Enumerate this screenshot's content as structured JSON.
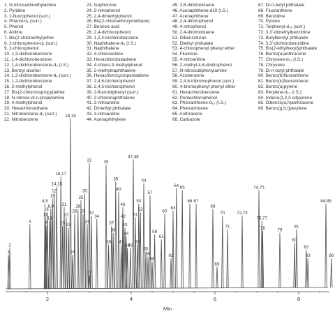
{
  "chart_data": {
    "type": "line",
    "xlabel": "Min",
    "ylabel": "",
    "xlim": [
      1.0,
      8.7
    ],
    "ylim": [
      0,
      100
    ],
    "x_ticks": [
      "2",
      "4",
      "6",
      "8"
    ],
    "grid": false,
    "legend_position": "top",
    "compounds": [
      "1. N-nitrosodimethylamine",
      "2. Pyridine",
      "3. 2-fluorophenol (surr.)",
      "4. Phenol-d₆ (surr.)",
      "5. Phenol",
      "6. Aniline",
      "7. Bis(2-chloroethyl)ether",
      "8. 2-chlorophenol-d₄ (surr.)",
      "9. 2-chlorophenol",
      "10. 1,3-dichlorobenzene",
      "11. 1,4-dichlorobenzene",
      "12. 1,4-dichlorobenzene-d₄ (I.S.)",
      "13. Benzyl alcohol",
      "14. 1,2-dichlorobenzene-d₄ (surr.)",
      "15. 1,2-dichlorobenzene",
      "16. 2-methylphenol",
      "17. Bis(2-chloroisopropyl)ether",
      "18. N-nitroso-di-n-propylamine",
      "19. 4-methylphenol",
      "20. Hexachloroethane",
      "21. Nitrobenzene-d₅ (surr.)",
      "22. Nitrobenzene",
      "23. Isophorone",
      "24. 2-nitrophenol",
      "25. 2,4-dimethylphenol",
      "26. Bis(2-chloroethoxymethane)",
      "27. Benzoic acid",
      "28. 2,4-dichlorophenol",
      "29. 1,2,4-trichlorobenzene",
      "30. Naphthalene-d₈ (I.S.)",
      "31. Naphthalene",
      "32. 4-chloroaniline",
      "33. Hexachlorobutadiene",
      "34. 4-chloro-3-methylphenol",
      "35. 2-methylnaphthalene",
      "36. Hexachlorocyclopentadiene",
      "37. 2,4,6-trichlorophenol",
      "38. 2,4,5-trichlorophenol",
      "39. 2-fluorobiphenyl (surr.)",
      "40. 2-chloronaphthalene",
      "41. 2-nitroaniline",
      "42. Dimethyl phthalate",
      "43. 3-nitroaniline",
      "44. Acenaphthylene",
      "45. 2,6-dinitrotoluene",
      "46. Acenaphthene-d10 (I.S.)",
      "47. Acenaphthene",
      "48. 2,4-dinitrophenol",
      "49. 4-nitrophenol",
      "50. 2,4-dinitrotoluene",
      "51. Dibenzofuran",
      "52. Diethyl phthalate",
      "53. 4-chlorophenyl phenyl ether",
      "54. Fluorene",
      "55. 4-nitroaniline",
      "56. 2-methyl-4,6-dinitrophenol",
      "57. N-nitrosodiphenylamine",
      "58. Azobenzene",
      "59. 2,4,6-tribromophenol (surr.)",
      "60. 4-bromophenyl phenyl ether",
      "61. Hexachlorobenzene",
      "62. Pentachlorophenol",
      "63. Phenanthrene-d₁₀ (I.S.)",
      "64. Phenanthrene",
      "65. Anthracene",
      "66. Carbazole",
      "67. Di-n-butyl phthalate",
      "68. Fluoranthene",
      "69. Benzidine",
      "70. Pyrene",
      "71. Terphenyl-d₁₄ (surr.)",
      "72. 3,3’-dimethylbenzidine",
      "73. Butylbenzyl phthalate",
      "74. 3,3’-dichlorobenzidine",
      "75. Bis(2-ethylhexyl)phthalate",
      "76. Benzo(a)anthracene",
      "77. Chrysene-d₁₂ (I.S.)",
      "78. Chrysene",
      "79. Di-n-octyl phthalate",
      "80. Benzo(b)fluoranthene",
      "81. Benzo(k)fluoranthene",
      "82. Benzo(a)pyrene",
      "83. Perylene-d₁₂ (I.S.)",
      "84. Indeno(1,2,3-cd)pyrene",
      "85. Dibenzo(a,h)anthracene",
      "86. Benzo(g,h,i)perylene"
    ],
    "peaks": [
      {
        "x": 1.07,
        "h": 20,
        "label": "1"
      },
      {
        "x": 1.1,
        "h": 24,
        "label": "2"
      },
      {
        "x": 1.58,
        "h": 38,
        "label": "3"
      },
      {
        "x": 1.94,
        "h": 50,
        "label": "4,5"
      },
      {
        "x": 2.0,
        "h": 45,
        "label": "6"
      },
      {
        "x": 1.97,
        "h": 37,
        "label": "7"
      },
      {
        "x": 2.08,
        "h": 47,
        "label": "8,9"
      },
      {
        "x": 1.95,
        "h": 42,
        "label": "11"
      },
      {
        "x": 2.12,
        "h": 53,
        "label": "10"
      },
      {
        "x": 2.16,
        "h": 56,
        "label": "12"
      },
      {
        "x": 2.05,
        "h": 40,
        "label": "13"
      },
      {
        "x": 2.22,
        "h": 60,
        "label": "14,15"
      },
      {
        "x": 2.32,
        "h": 66,
        "label": "16,17"
      },
      {
        "x": 2.55,
        "h": 100,
        "label": "18,19"
      },
      {
        "x": 2.36,
        "h": 37,
        "label": "20"
      },
      {
        "x": 2.4,
        "h": 48,
        "label": "21"
      },
      {
        "x": 2.45,
        "h": 42,
        "label": "22"
      },
      {
        "x": 2.5,
        "h": 36,
        "label": "23"
      },
      {
        "x": 2.6,
        "h": 20,
        "label": "24"
      },
      {
        "x": 2.8,
        "h": 52,
        "label": "25"
      },
      {
        "x": 2.65,
        "h": 44,
        "label": "26"
      },
      {
        "x": 3.0,
        "h": 8,
        "label": "27"
      },
      {
        "x": 2.73,
        "h": 47,
        "label": "28"
      },
      {
        "x": 2.85,
        "h": 44,
        "label": "29"
      },
      {
        "x": 2.89,
        "h": 56,
        "label": "30"
      },
      {
        "x": 3.0,
        "h": 74,
        "label": "31"
      },
      {
        "x": 3.05,
        "h": 43,
        "label": "32"
      },
      {
        "x": 2.95,
        "h": 38,
        "label": "33"
      },
      {
        "x": 3.18,
        "h": 41,
        "label": "34"
      },
      {
        "x": 3.4,
        "h": 73,
        "label": "35"
      },
      {
        "x": 3.46,
        "h": 26,
        "label": "36"
      },
      {
        "x": 3.53,
        "h": 37,
        "label": "37"
      },
      {
        "x": 3.57,
        "h": 33,
        "label": "38"
      },
      {
        "x": 3.63,
        "h": 63,
        "label": "39"
      },
      {
        "x": 3.7,
        "h": 57,
        "label": "40"
      },
      {
        "x": 3.76,
        "h": 26,
        "label": "41"
      },
      {
        "x": 3.81,
        "h": 41,
        "label": "42"
      },
      {
        "x": 3.85,
        "h": 36,
        "label": "43"
      },
      {
        "x": 3.88,
        "h": 31,
        "label": "44"
      },
      {
        "x": 3.91,
        "h": 24,
        "label": "45"
      },
      {
        "x": 3.8,
        "h": 48,
        "label": "46"
      },
      {
        "x": 4.05,
        "h": 76,
        "label": "47,48"
      },
      {
        "x": 3.98,
        "h": 24,
        "label": "49"
      },
      {
        "x": 4.15,
        "h": 26,
        "label": "50"
      },
      {
        "x": 4.1,
        "h": 42,
        "label": "51"
      },
      {
        "x": 4.22,
        "h": 45,
        "label": "52"
      },
      {
        "x": 4.18,
        "h": 50,
        "label": "53"
      },
      {
        "x": 4.3,
        "h": 62,
        "label": "54"
      },
      {
        "x": 4.35,
        "h": 22,
        "label": "55"
      },
      {
        "x": 4.4,
        "h": 19,
        "label": "56"
      },
      {
        "x": 4.45,
        "h": 55,
        "label": "57"
      },
      {
        "x": 4.5,
        "h": 16,
        "label": "58"
      },
      {
        "x": 4.56,
        "h": 32,
        "label": "59"
      },
      {
        "x": 4.8,
        "h": 44,
        "label": "60"
      },
      {
        "x": 4.72,
        "h": 29,
        "label": "61"
      },
      {
        "x": 4.95,
        "h": 18,
        "label": "62"
      },
      {
        "x": 5.0,
        "h": 46,
        "label": "63"
      },
      {
        "x": 5.08,
        "h": 59,
        "label": "64"
      },
      {
        "x": 5.22,
        "h": 58,
        "label": "65"
      },
      {
        "x": 5.4,
        "h": 50,
        "label": "66"
      },
      {
        "x": 5.55,
        "h": 50,
        "label": "67"
      },
      {
        "x": 5.95,
        "h": 47,
        "label": "68"
      },
      {
        "x": 6.05,
        "h": 13,
        "label": "69"
      },
      {
        "x": 6.18,
        "h": 43,
        "label": "70"
      },
      {
        "x": 6.3,
        "h": 35,
        "label": "71"
      },
      {
        "x": 6.65,
        "h": 43,
        "label": "72,73"
      },
      {
        "x": 7.05,
        "h": 58,
        "label": "74,75"
      },
      {
        "x": 7.12,
        "h": 40,
        "label": "76,77"
      },
      {
        "x": 7.14,
        "h": 34,
        "label": "78"
      },
      {
        "x": 7.55,
        "h": 33,
        "label": "79"
      },
      {
        "x": 7.9,
        "h": 27,
        "label": "80"
      },
      {
        "x": 7.95,
        "h": 35,
        "label": "81"
      },
      {
        "x": 8.18,
        "h": 23,
        "label": "82"
      },
      {
        "x": 8.22,
        "h": 18,
        "label": "83"
      },
      {
        "x": 8.65,
        "h": 50,
        "label": "84,85"
      },
      {
        "x": 8.78,
        "h": 18,
        "label": "86"
      }
    ]
  }
}
